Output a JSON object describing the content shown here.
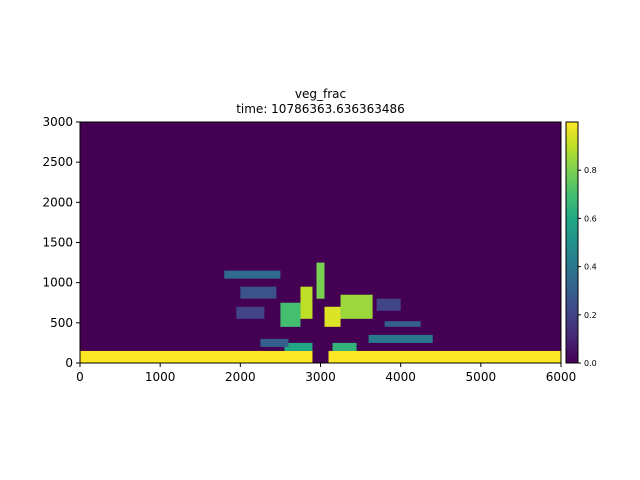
{
  "chart_data": {
    "type": "heatmap",
    "title_line1": "veg_frac",
    "title_line2": "time: 10786363.636363486",
    "xlim": [
      0,
      6000
    ],
    "ylim": [
      0,
      3000
    ],
    "x_ticks": [
      "0",
      "1000",
      "2000",
      "3000",
      "4000",
      "5000",
      "6000"
    ],
    "y_ticks": [
      "0",
      "500",
      "1000",
      "1500",
      "2000",
      "2500",
      "3000"
    ],
    "colorbar": {
      "cmap": "viridis",
      "range": [
        0,
        1
      ],
      "ticks": [
        "0.0",
        "0.2",
        "0.4",
        "0.6",
        "0.8"
      ]
    },
    "grid": {
      "nx": 120,
      "ny": 60,
      "dx": 50,
      "dy": 50
    },
    "background_value": 0,
    "regions": [
      {
        "x": [
          0,
          2900
        ],
        "y": [
          0,
          150
        ],
        "value": 1.0
      },
      {
        "x": [
          3100,
          6000
        ],
        "y": [
          0,
          150
        ],
        "value": 1.0
      },
      {
        "x": [
          2950,
          3050
        ],
        "y": [
          800,
          1250
        ],
        "value": 0.8
      },
      {
        "x": [
          2750,
          2900
        ],
        "y": [
          550,
          950
        ],
        "value": 0.9
      },
      {
        "x": [
          3050,
          3250
        ],
        "y": [
          450,
          700
        ],
        "value": 0.95
      },
      {
        "x": [
          3250,
          3650
        ],
        "y": [
          550,
          850
        ],
        "value": 0.85
      },
      {
        "x": [
          2500,
          2750
        ],
        "y": [
          450,
          750
        ],
        "value": 0.7
      },
      {
        "x": [
          2550,
          2900
        ],
        "y": [
          150,
          250
        ],
        "value": 0.6
      },
      {
        "x": [
          3150,
          3450
        ],
        "y": [
          150,
          250
        ],
        "value": 0.65
      },
      {
        "x": [
          3600,
          4400
        ],
        "y": [
          250,
          350
        ],
        "value": 0.4
      },
      {
        "x": [
          3800,
          4250
        ],
        "y": [
          450,
          520
        ],
        "value": 0.3
      },
      {
        "x": [
          1800,
          2500
        ],
        "y": [
          1050,
          1150
        ],
        "value": 0.35
      },
      {
        "x": [
          2000,
          2450
        ],
        "y": [
          800,
          950
        ],
        "value": 0.25
      },
      {
        "x": [
          1950,
          2300
        ],
        "y": [
          550,
          700
        ],
        "value": 0.2
      },
      {
        "x": [
          2250,
          2600
        ],
        "y": [
          200,
          300
        ],
        "value": 0.3
      },
      {
        "x": [
          3700,
          4000
        ],
        "y": [
          650,
          800
        ],
        "value": 0.2
      }
    ]
  }
}
